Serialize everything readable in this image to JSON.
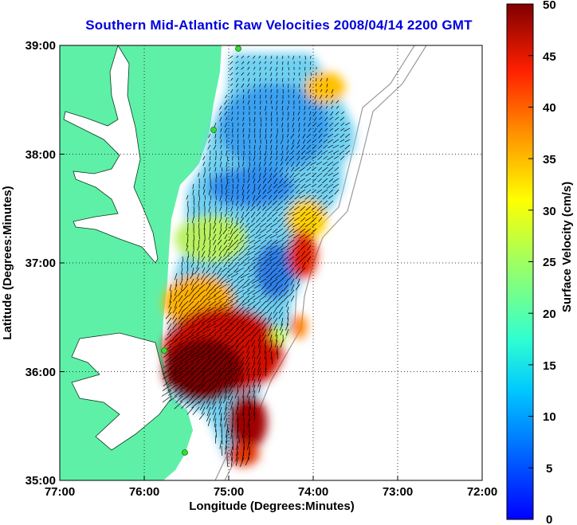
{
  "title": "Southern Mid-Atlantic Raw Velocities 2008/04/14 2200 GMT",
  "x_axis": {
    "label": "Longitude (Degrees:Minutes)",
    "ticks": [
      "77:00",
      "76:00",
      "75:00",
      "74:00",
      "73:00",
      "72:00"
    ]
  },
  "y_axis": {
    "label": "Latitude (Degrees:Minutes)",
    "ticks": [
      "39:00",
      "38:00",
      "37:00",
      "36:00",
      "35:00"
    ]
  },
  "colorbar": {
    "label": "Surface Velocity (cm/s)",
    "ticks": [
      "50",
      "45",
      "40",
      "35",
      "30",
      "25",
      "20",
      "15",
      "10",
      "5",
      "0"
    ],
    "range": [
      0,
      50
    ],
    "colormap": "jet"
  },
  "colors": {
    "land": "#5ff0a8",
    "title": "#0000dd",
    "bathymetry": "#9a9a9a",
    "stations": "#33dd33"
  },
  "map": {
    "lon_range": [
      -77,
      -72
    ],
    "lat_range": [
      35,
      39
    ],
    "grid": "dotted"
  }
}
